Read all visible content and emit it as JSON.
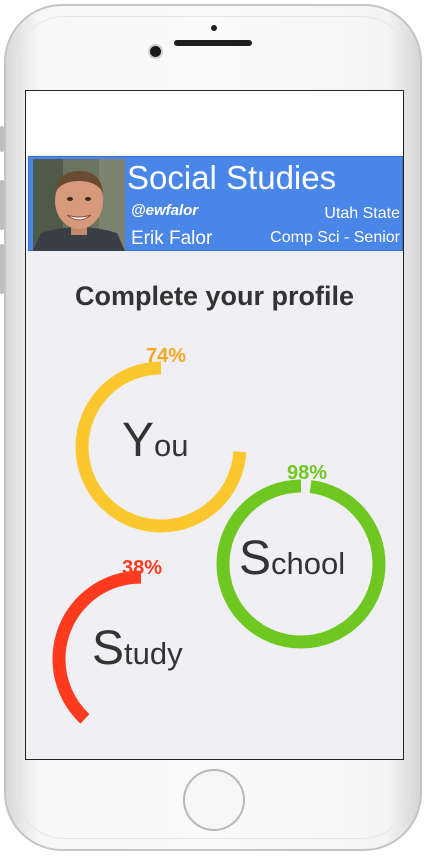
{
  "header": {
    "title": "Social Studies",
    "handle": "@ewfalor",
    "name": "Erik Falor",
    "school": "Utah State",
    "major": "Comp Sci - Senior"
  },
  "main": {
    "heading": "Complete your profile",
    "rings": [
      {
        "id": "you",
        "initial": "Y",
        "rest": "ou",
        "percent": 74,
        "percent_label": "74%",
        "color": "#fbc72e",
        "label_color": "#f5a623"
      },
      {
        "id": "school",
        "initial": "S",
        "rest": "chool",
        "percent": 98,
        "percent_label": "98%",
        "color": "#6ec821",
        "label_color": "#6ec821"
      },
      {
        "id": "study",
        "initial": "S",
        "rest": "tudy",
        "percent": 38,
        "percent_label": "38%",
        "color": "#ff3b1f",
        "label_color": "#ff3b1f"
      }
    ]
  },
  "icons": {
    "avatar": "profile-photo",
    "home_button": "home-button-icon"
  }
}
